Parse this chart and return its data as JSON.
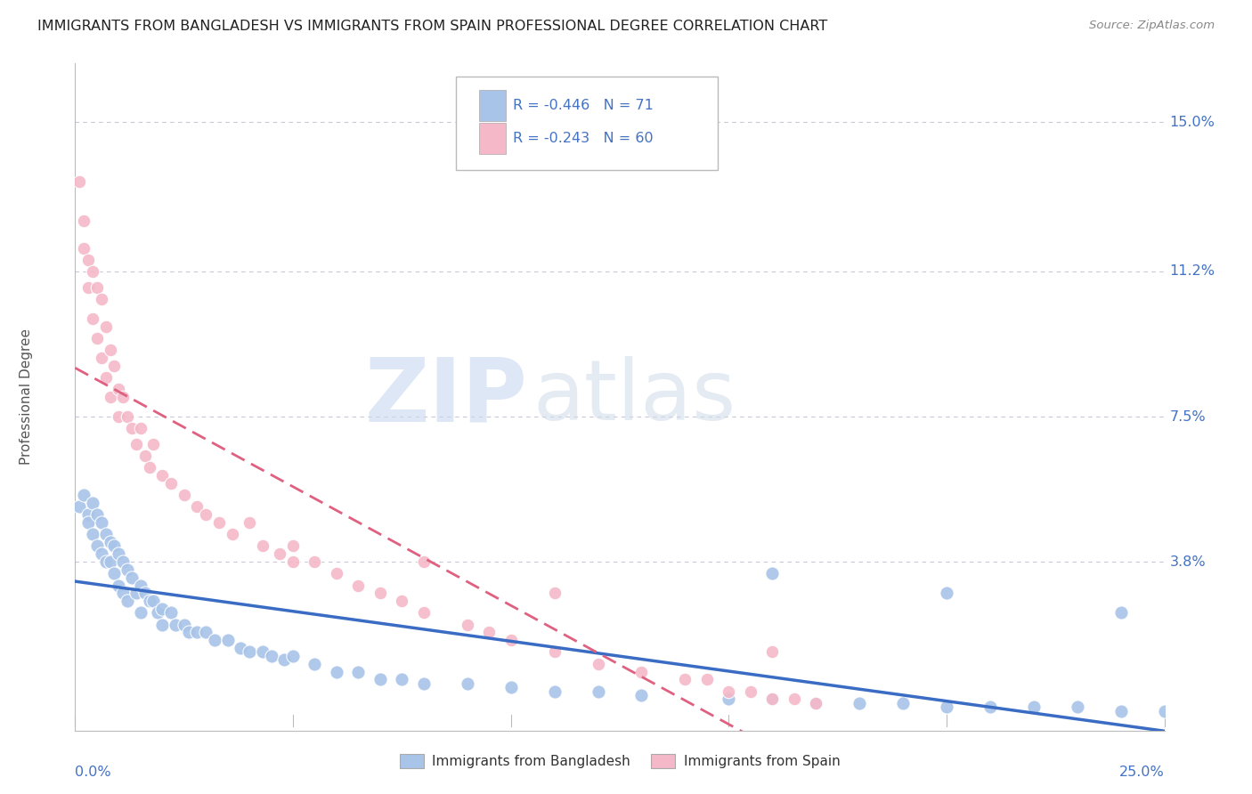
{
  "title": "IMMIGRANTS FROM BANGLADESH VS IMMIGRANTS FROM SPAIN PROFESSIONAL DEGREE CORRELATION CHART",
  "source": "Source: ZipAtlas.com",
  "ylabel": "Professional Degree",
  "xlim": [
    0.0,
    0.25
  ],
  "ylim": [
    -0.005,
    0.165
  ],
  "r_bangladesh": -0.446,
  "n_bangladesh": 71,
  "r_spain": -0.243,
  "n_spain": 60,
  "color_bangladesh": "#a8c4e8",
  "color_spain": "#f4b8c8",
  "color_bangladesh_line": "#3a6cc4",
  "color_spain_line": "#e06080",
  "color_text_blue": "#4472c4",
  "color_text_dark": "#333333",
  "background_color": "#ffffff",
  "grid_color": "#c8c8d8",
  "ytick_positions": [
    0.038,
    0.075,
    0.112,
    0.15
  ],
  "ytick_labels": [
    "3.8%",
    "7.5%",
    "11.2%",
    "15.0%"
  ],
  "bangladesh_x": [
    0.001,
    0.002,
    0.003,
    0.003,
    0.004,
    0.004,
    0.005,
    0.005,
    0.006,
    0.006,
    0.007,
    0.007,
    0.008,
    0.008,
    0.009,
    0.009,
    0.01,
    0.01,
    0.011,
    0.011,
    0.012,
    0.012,
    0.013,
    0.014,
    0.015,
    0.015,
    0.016,
    0.017,
    0.018,
    0.019,
    0.02,
    0.02,
    0.022,
    0.023,
    0.025,
    0.026,
    0.028,
    0.03,
    0.032,
    0.035,
    0.038,
    0.04,
    0.043,
    0.045,
    0.048,
    0.05,
    0.055,
    0.06,
    0.065,
    0.07,
    0.075,
    0.08,
    0.09,
    0.1,
    0.11,
    0.12,
    0.13,
    0.15,
    0.16,
    0.17,
    0.18,
    0.19,
    0.2,
    0.21,
    0.22,
    0.23,
    0.24,
    0.25,
    0.16,
    0.2,
    0.24
  ],
  "bangladesh_y": [
    0.052,
    0.055,
    0.05,
    0.048,
    0.053,
    0.045,
    0.05,
    0.042,
    0.048,
    0.04,
    0.045,
    0.038,
    0.043,
    0.038,
    0.042,
    0.035,
    0.04,
    0.032,
    0.038,
    0.03,
    0.036,
    0.028,
    0.034,
    0.03,
    0.032,
    0.025,
    0.03,
    0.028,
    0.028,
    0.025,
    0.026,
    0.022,
    0.025,
    0.022,
    0.022,
    0.02,
    0.02,
    0.02,
    0.018,
    0.018,
    0.016,
    0.015,
    0.015,
    0.014,
    0.013,
    0.014,
    0.012,
    0.01,
    0.01,
    0.008,
    0.008,
    0.007,
    0.007,
    0.006,
    0.005,
    0.005,
    0.004,
    0.003,
    0.003,
    0.002,
    0.002,
    0.002,
    0.001,
    0.001,
    0.001,
    0.001,
    0.0,
    0.0,
    0.035,
    0.03,
    0.025
  ],
  "spain_x": [
    0.001,
    0.002,
    0.002,
    0.003,
    0.003,
    0.004,
    0.004,
    0.005,
    0.005,
    0.006,
    0.006,
    0.007,
    0.007,
    0.008,
    0.008,
    0.009,
    0.01,
    0.01,
    0.011,
    0.012,
    0.013,
    0.014,
    0.015,
    0.016,
    0.017,
    0.018,
    0.02,
    0.022,
    0.025,
    0.028,
    0.03,
    0.033,
    0.036,
    0.04,
    0.043,
    0.047,
    0.05,
    0.055,
    0.06,
    0.065,
    0.07,
    0.075,
    0.08,
    0.09,
    0.095,
    0.1,
    0.11,
    0.12,
    0.13,
    0.14,
    0.145,
    0.15,
    0.155,
    0.16,
    0.165,
    0.17,
    0.05,
    0.08,
    0.11,
    0.16
  ],
  "spain_y": [
    0.135,
    0.125,
    0.118,
    0.115,
    0.108,
    0.112,
    0.1,
    0.108,
    0.095,
    0.105,
    0.09,
    0.098,
    0.085,
    0.092,
    0.08,
    0.088,
    0.082,
    0.075,
    0.08,
    0.075,
    0.072,
    0.068,
    0.072,
    0.065,
    0.062,
    0.068,
    0.06,
    0.058,
    0.055,
    0.052,
    0.05,
    0.048,
    0.045,
    0.048,
    0.042,
    0.04,
    0.038,
    0.038,
    0.035,
    0.032,
    0.03,
    0.028,
    0.025,
    0.022,
    0.02,
    0.018,
    0.015,
    0.012,
    0.01,
    0.008,
    0.008,
    0.005,
    0.005,
    0.003,
    0.003,
    0.002,
    0.042,
    0.038,
    0.03,
    0.015
  ]
}
